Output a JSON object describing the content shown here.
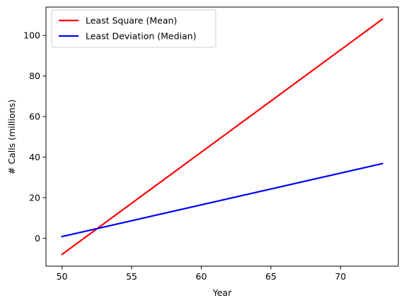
{
  "chart_data": {
    "type": "line",
    "xlabel": "Year",
    "ylabel": "# Calls (millions)",
    "xlim": [
      48.85,
      74.15
    ],
    "ylim": [
      -13.8,
      114.0
    ],
    "xticks": [
      50,
      55,
      60,
      65,
      70
    ],
    "yticks": [
      0,
      20,
      40,
      60,
      80,
      100
    ],
    "grid": false,
    "legend_position": "top-left",
    "series": [
      {
        "name": "Least Square (Mean)",
        "color": "#ff0000",
        "x": [
          50,
          73
        ],
        "y": [
          -8.0,
          108.0
        ]
      },
      {
        "name": "Least Deviation (Median)",
        "color": "#0000ff",
        "x": [
          50,
          73
        ],
        "y": [
          0.8,
          36.8
        ]
      }
    ]
  }
}
